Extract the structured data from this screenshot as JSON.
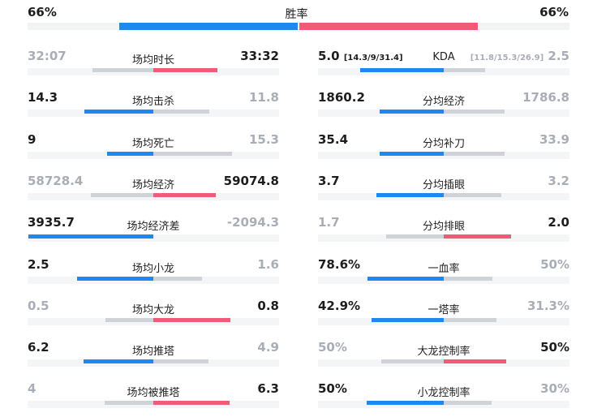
{
  "win_rate": {
    "label": "胜率",
    "left_value": "66%",
    "right_value": "66%",
    "left_bar_color": "#1e88f0",
    "right_bar_color": "#f25a78"
  },
  "left_column": [
    {
      "label": "场均时长",
      "left": "32:07",
      "right": "33:32",
      "left_winner": false,
      "left_fill": 0.49,
      "right_fill": 0.51
    },
    {
      "label": "场均击杀",
      "left": "14.3",
      "right": "11.8",
      "left_winner": true,
      "left_fill": 0.55,
      "right_fill": 0.45
    },
    {
      "label": "场均死亡",
      "left": "9",
      "right": "15.3",
      "left_winner": true,
      "left_fill": 0.37,
      "right_fill": 0.63
    },
    {
      "label": "场均经济",
      "left": "58728.4",
      "right": "59074.8",
      "left_winner": false,
      "left_fill": 0.5,
      "right_fill": 0.5
    },
    {
      "label": "场均经济差",
      "left": "3935.7",
      "right": "-2094.3",
      "left_winner": true,
      "left_fill": 1.0,
      "right_fill": 0.0
    },
    {
      "label": "场均小龙",
      "left": "2.5",
      "right": "1.6",
      "left_winner": true,
      "left_fill": 0.61,
      "right_fill": 0.39
    },
    {
      "label": "场均大龙",
      "left": "0.5",
      "right": "0.8",
      "left_winner": false,
      "left_fill": 0.38,
      "right_fill": 0.62
    },
    {
      "label": "场均推塔",
      "left": "6.2",
      "right": "4.9",
      "left_winner": true,
      "left_fill": 0.56,
      "right_fill": 0.44
    },
    {
      "label": "场均被推塔",
      "left": "4",
      "right": "6.3",
      "left_winner": false,
      "left_fill": 0.39,
      "right_fill": 0.61
    }
  ],
  "right_column": [
    {
      "label": "KDA",
      "left": "5.0",
      "left_detail": "[14.3/9/31.4]",
      "right": "2.5",
      "right_detail": "[11.8/15.3/26.9]",
      "left_winner": true,
      "left_fill": 0.67,
      "right_fill": 0.33
    },
    {
      "label": "分均经济",
      "left": "1860.2",
      "right": "1786.8",
      "left_winner": true,
      "left_fill": 0.51,
      "right_fill": 0.49
    },
    {
      "label": "分均补刀",
      "left": "35.4",
      "right": "33.9",
      "left_winner": true,
      "left_fill": 0.51,
      "right_fill": 0.49
    },
    {
      "label": "分均插眼",
      "left": "3.7",
      "right": "3.2",
      "left_winner": true,
      "left_fill": 0.54,
      "right_fill": 0.46
    },
    {
      "label": "分均排眼",
      "left": "1.7",
      "right": "2.0",
      "left_winner": false,
      "left_fill": 0.46,
      "right_fill": 0.54
    },
    {
      "label": "一血率",
      "left": "78.6%",
      "right": "50%",
      "left_winner": true,
      "left_fill": 0.61,
      "right_fill": 0.39
    },
    {
      "label": "一塔率",
      "left": "42.9%",
      "right": "31.3%",
      "left_winner": true,
      "left_fill": 0.58,
      "right_fill": 0.42
    },
    {
      "label": "大龙控制率",
      "left": "50%",
      "right": "50%",
      "left_winner": false,
      "left_fill": 0.5,
      "right_fill": 0.5
    },
    {
      "label": "小龙控制率",
      "left": "50%",
      "right": "30%",
      "left_winner": true,
      "left_fill": 0.62,
      "right_fill": 0.38
    }
  ]
}
